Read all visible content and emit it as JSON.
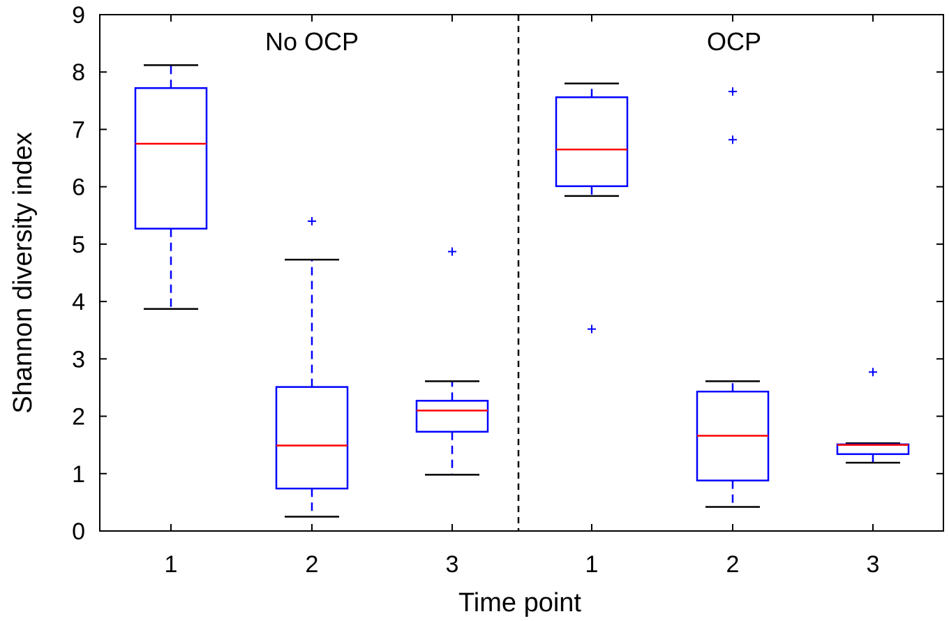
{
  "chart_data": {
    "type": "box",
    "xlabel": "Time point",
    "ylabel": "Shannon diversity index",
    "ylim": [
      0,
      9
    ],
    "yticks": [
      0,
      1,
      2,
      3,
      4,
      5,
      6,
      7,
      8,
      9
    ],
    "categories": [
      "1",
      "2",
      "3",
      "1",
      "2",
      "3"
    ],
    "grid": false,
    "groups": [
      {
        "label": "No OCP",
        "categories": [
          "1",
          "2",
          "3"
        ]
      },
      {
        "label": "OCP",
        "categories": [
          "1",
          "2",
          "3"
        ]
      }
    ],
    "boxes": [
      {
        "category": "1",
        "group": "No OCP",
        "whisker_low": 3.87,
        "q1": 5.27,
        "median": 6.75,
        "q3": 7.72,
        "whisker_high": 8.12,
        "outliers": []
      },
      {
        "category": "2",
        "group": "No OCP",
        "whisker_low": 0.25,
        "q1": 0.74,
        "median": 1.49,
        "q3": 2.51,
        "whisker_high": 4.73,
        "outliers": [
          5.4
        ]
      },
      {
        "category": "3",
        "group": "No OCP",
        "whisker_low": 0.98,
        "q1": 1.73,
        "median": 2.1,
        "q3": 2.27,
        "whisker_high": 2.61,
        "outliers": [
          4.87
        ]
      },
      {
        "category": "1",
        "group": "OCP",
        "whisker_low": 5.84,
        "q1": 6.01,
        "median": 6.65,
        "q3": 7.56,
        "whisker_high": 7.8,
        "outliers": [
          3.52
        ]
      },
      {
        "category": "2",
        "group": "OCP",
        "whisker_low": 0.42,
        "q1": 0.88,
        "median": 1.66,
        "q3": 2.43,
        "whisker_high": 2.61,
        "outliers": [
          6.82,
          7.66
        ]
      },
      {
        "category": "3",
        "group": "OCP",
        "whisker_low": 1.19,
        "q1": 1.34,
        "median": 1.5,
        "q3": 1.51,
        "whisker_high": 1.53,
        "outliers": [
          2.77
        ]
      }
    ],
    "colors": {
      "box": "#0000ff",
      "median": "#ff0000",
      "whisker_cap": "#000000",
      "outlier": "#0000ff",
      "divider": "#000000"
    }
  }
}
